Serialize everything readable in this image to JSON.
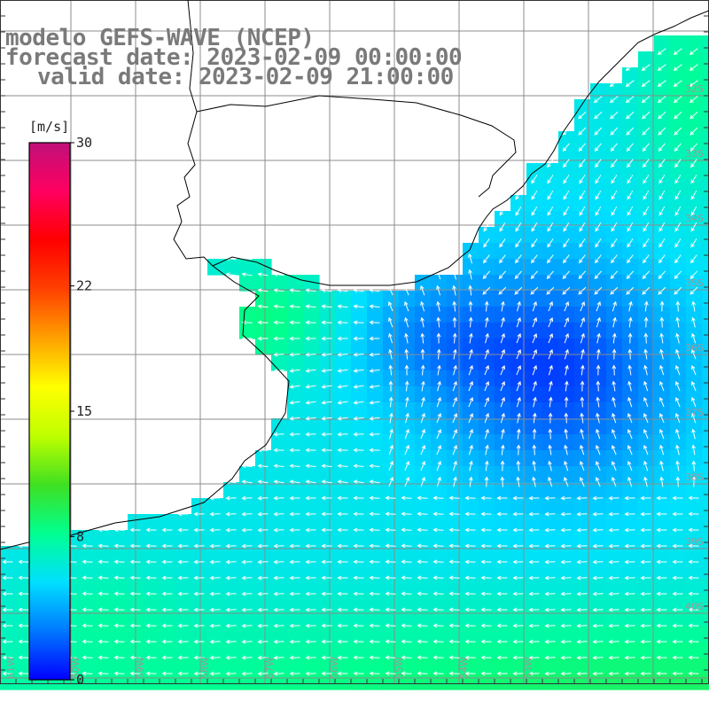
{
  "header": {
    "model": "modelo GEFS-WAVE (NCEP)",
    "forecast": "forecast date: 2023-02-09 00:00:00",
    "valid": "valid date: 2023-02-09 21:00:00"
  },
  "colorbar": {
    "unit": "[m/s]",
    "min": 0,
    "max": 30,
    "ticks": [
      {
        "value": 30,
        "label": "30"
      },
      {
        "value": 22,
        "label": "22"
      },
      {
        "value": 15,
        "label": "15"
      },
      {
        "value": 8,
        "label": "8"
      },
      {
        "value": 0,
        "label": "0"
      }
    ],
    "colors": [
      "#0000ff",
      "#0078ff",
      "#00e0ff",
      "#00ff90",
      "#40e020",
      "#c0ff00",
      "#ffff00",
      "#ffa000",
      "#ff4000",
      "#ff0000",
      "#ff0060",
      "#c0107a"
    ]
  },
  "grid_labels": {
    "lat": [
      "32S",
      "33S",
      "34S",
      "35S",
      "36S",
      "37S",
      "38S",
      "39S",
      "40S"
    ],
    "lon": [
      "61W",
      "60W",
      "59W",
      "58W",
      "57W",
      "56W",
      "55W",
      "54W",
      "53W"
    ]
  },
  "chart_data": {
    "type": "heatmap",
    "variable": "wind speed",
    "unit": "m/s",
    "x_range": [
      "61W",
      "53W"
    ],
    "y_range": [
      "32S",
      "40S"
    ],
    "colorbar_range": [
      0,
      30
    ],
    "field_range_estimate": [
      1,
      10
    ]
  },
  "style": {
    "title_color": "#7a7a7a",
    "grid_color": "#8c8c8c",
    "coast_color": "#000000",
    "arrow_color": "#ffffff"
  }
}
